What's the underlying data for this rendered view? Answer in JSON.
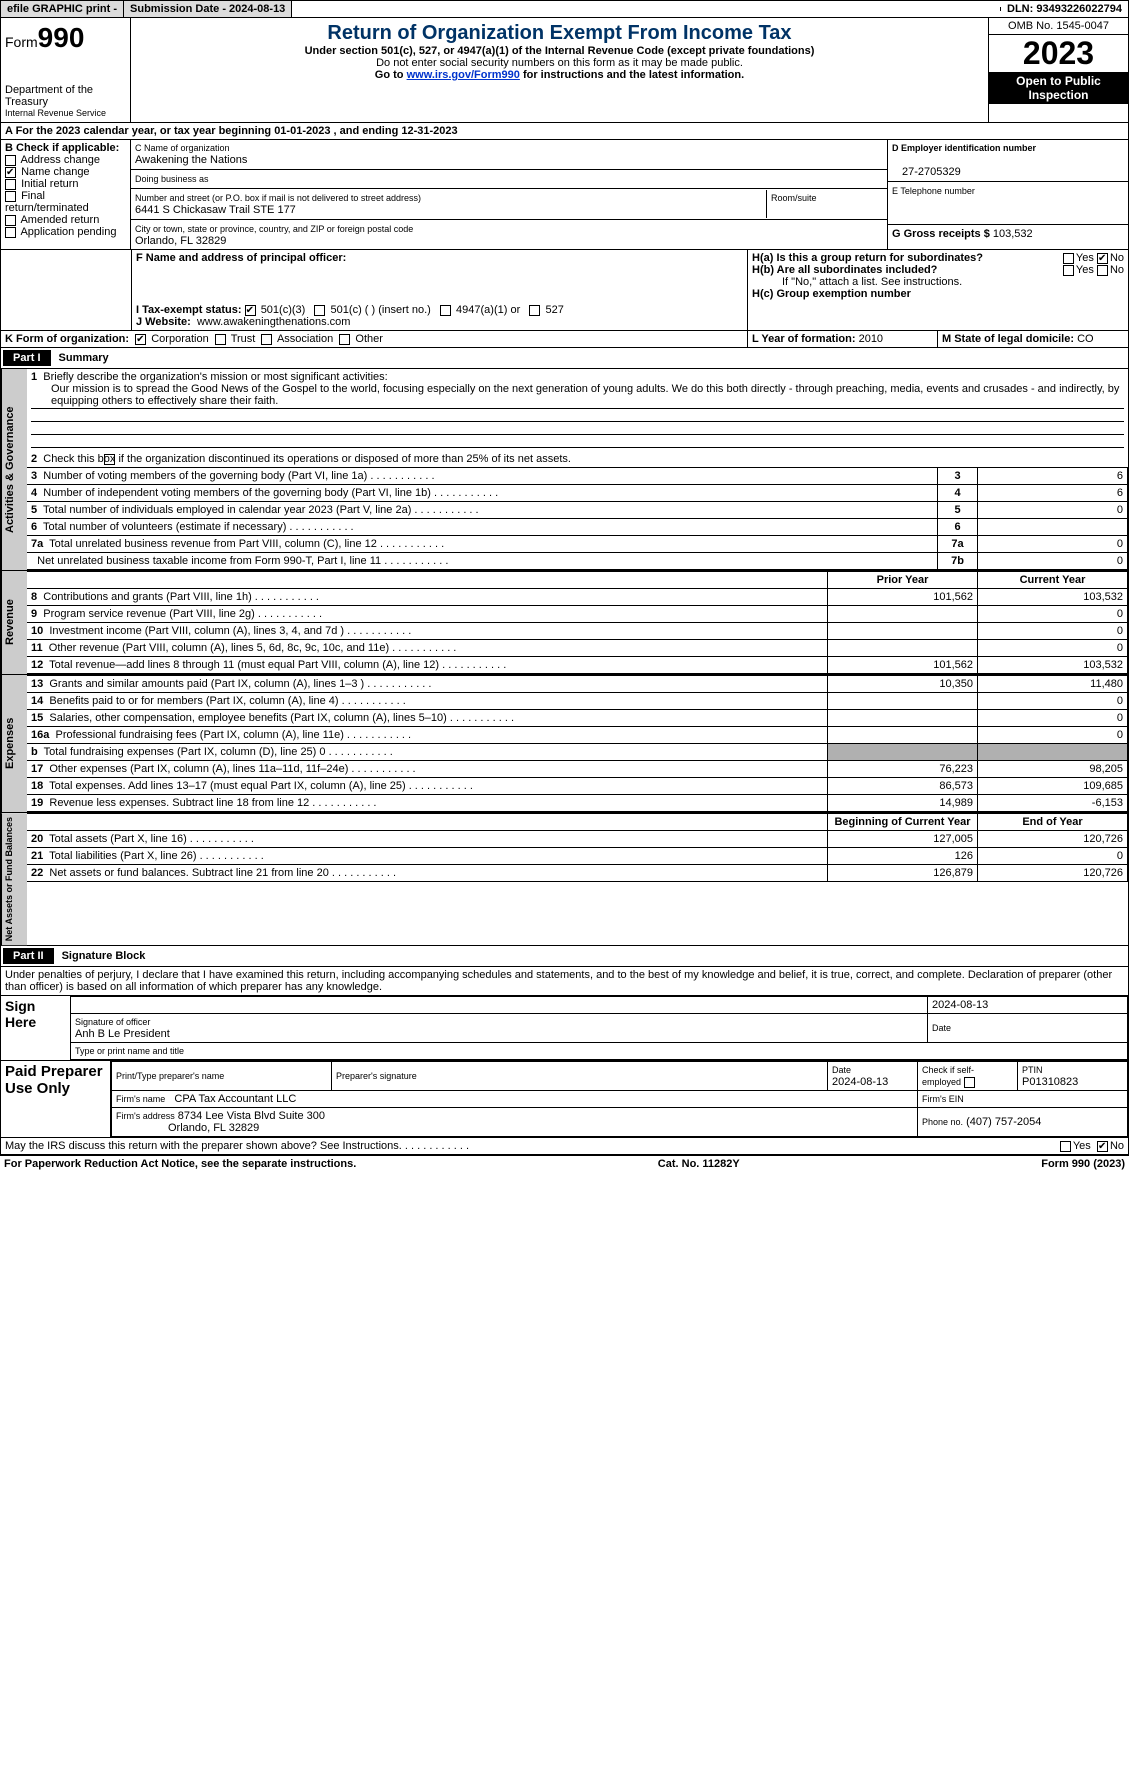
{
  "topbar": {
    "efile": "efile GRAPHIC print -",
    "submission_date_label": "Submission Date - 2024-08-13",
    "dln_label": "DLN: 93493226022794"
  },
  "header": {
    "form_label": "Form",
    "form_number": "990",
    "dept": "Department of the Treasury",
    "irs": "Internal Revenue Service",
    "title": "Return of Organization Exempt From Income Tax",
    "subtitle": "Under section 501(c), 527, or 4947(a)(1) of the Internal Revenue Code (except private foundations)",
    "ssn_note": "Do not enter social security numbers on this form as it may be made public.",
    "goto": "Go to",
    "goto_link": "www.irs.gov/Form990",
    "goto_tail": "for instructions and the latest information.",
    "omb": "OMB No. 1545-0047",
    "year": "2023",
    "inspect": "Open to Public Inspection"
  },
  "sectionA": {
    "text": "A For the 2023 calendar year, or tax year beginning 01-01-2023    , and ending 12-31-2023"
  },
  "boxB": {
    "label": "B Check if applicable:",
    "items": [
      "Address change",
      "Name change",
      "Initial return",
      "Final return/terminated",
      "Amended return",
      "Application pending"
    ],
    "checked_index": 1
  },
  "boxC": {
    "name_label": "C Name of organization",
    "name": "Awakening the Nations",
    "dba_label": "Doing business as",
    "addr_label": "Number and street (or P.O. box if mail is not delivered to street address)",
    "addr": "6441 S Chickasaw Trail STE 177",
    "room_label": "Room/suite",
    "city_label": "City or town, state or province, country, and ZIP or foreign postal code",
    "city": "Orlando, FL  32829"
  },
  "boxD": {
    "label": "D Employer identification number",
    "value": "27-2705329"
  },
  "boxE": {
    "label": "E Telephone number",
    "value": ""
  },
  "boxG": {
    "label": "G Gross receipts $",
    "value": "103,532"
  },
  "boxF": {
    "label": "F  Name and address of principal officer:"
  },
  "boxH": {
    "ha": "H(a)  Is this a group return for subordinates?",
    "hb": "H(b)  Are all subordinates included?",
    "hb_note": "If \"No,\" attach a list. See instructions.",
    "hc": "H(c)  Group exemption number",
    "yes": "Yes",
    "no": "No"
  },
  "boxI": {
    "label": "I    Tax-exempt status:",
    "opts": [
      "501(c)(3)",
      "501(c) (  ) (insert no.)",
      "4947(a)(1) or",
      "527"
    ]
  },
  "boxJ": {
    "label": "J    Website:",
    "value": "www.awakeningthenations.com"
  },
  "boxK": {
    "label": "K Form of organization:",
    "opts": [
      "Corporation",
      "Trust",
      "Association",
      "Other"
    ]
  },
  "boxL": {
    "label": "L Year of formation:",
    "value": "2010"
  },
  "boxM": {
    "label": "M State of legal domicile:",
    "value": "CO"
  },
  "part1": {
    "tag": "Part I",
    "title": "Summary",
    "line1_label": "Briefly describe the organization's mission or most significant activities:",
    "line1_text": "Our mission is to spread the Good News of the Gospel to the world, focusing especially on the next generation of young adults. We do this both directly - through preaching, media, events and crusades - and indirectly, by equipping others to effectively share their faith.",
    "line2": "Check this box       if the organization discontinued its operations or disposed of more than 25% of its net assets.",
    "vert_ag": "Activities & Governance",
    "vert_rev": "Revenue",
    "vert_exp": "Expenses",
    "vert_na": "Net Assets or Fund Balances",
    "col_prior": "Prior Year",
    "col_current": "Current Year",
    "col_boy": "Beginning of Current Year",
    "col_eoy": "End of Year",
    "rows_ag": [
      {
        "n": "3",
        "t": "Number of voting members of the governing body (Part VI, line 1a)",
        "box": "3",
        "v": "6"
      },
      {
        "n": "4",
        "t": "Number of independent voting members of the governing body (Part VI, line 1b)",
        "box": "4",
        "v": "6"
      },
      {
        "n": "5",
        "t": "Total number of individuals employed in calendar year 2023 (Part V, line 2a)",
        "box": "5",
        "v": "0"
      },
      {
        "n": "6",
        "t": "Total number of volunteers (estimate if necessary)",
        "box": "6",
        "v": ""
      },
      {
        "n": "7a",
        "t": "Total unrelated business revenue from Part VIII, column (C), line 12",
        "box": "7a",
        "v": "0"
      },
      {
        "n": "",
        "t": "Net unrelated business taxable income from Form 990-T, Part I, line 11",
        "box": "7b",
        "v": "0"
      }
    ],
    "rows_rev": [
      {
        "n": "8",
        "t": "Contributions and grants (Part VIII, line 1h)",
        "p": "101,562",
        "c": "103,532"
      },
      {
        "n": "9",
        "t": "Program service revenue (Part VIII, line 2g)",
        "p": "",
        "c": "0"
      },
      {
        "n": "10",
        "t": "Investment income (Part VIII, column (A), lines 3, 4, and 7d )",
        "p": "",
        "c": "0"
      },
      {
        "n": "11",
        "t": "Other revenue (Part VIII, column (A), lines 5, 6d, 8c, 9c, 10c, and 11e)",
        "p": "",
        "c": "0"
      },
      {
        "n": "12",
        "t": "Total revenue—add lines 8 through 11 (must equal Part VIII, column (A), line 12)",
        "p": "101,562",
        "c": "103,532"
      }
    ],
    "rows_exp": [
      {
        "n": "13",
        "t": "Grants and similar amounts paid (Part IX, column (A), lines 1–3 )",
        "p": "10,350",
        "c": "11,480"
      },
      {
        "n": "14",
        "t": "Benefits paid to or for members (Part IX, column (A), line 4)",
        "p": "",
        "c": "0"
      },
      {
        "n": "15",
        "t": "Salaries, other compensation, employee benefits (Part IX, column (A), lines 5–10)",
        "p": "",
        "c": "0"
      },
      {
        "n": "16a",
        "t": "Professional fundraising fees (Part IX, column (A), line 11e)",
        "p": "",
        "c": "0"
      },
      {
        "n": "b",
        "t": "Total fundraising expenses (Part IX, column (D), line 25) 0",
        "p": "GRAY",
        "c": "GRAY"
      },
      {
        "n": "17",
        "t": "Other expenses (Part IX, column (A), lines 11a–11d, 11f–24e)",
        "p": "76,223",
        "c": "98,205"
      },
      {
        "n": "18",
        "t": "Total expenses. Add lines 13–17 (must equal Part IX, column (A), line 25)",
        "p": "86,573",
        "c": "109,685"
      },
      {
        "n": "19",
        "t": "Revenue less expenses. Subtract line 18 from line 12",
        "p": "14,989",
        "c": "-6,153"
      }
    ],
    "rows_na": [
      {
        "n": "20",
        "t": "Total assets (Part X, line 16)",
        "p": "127,005",
        "c": "120,726"
      },
      {
        "n": "21",
        "t": "Total liabilities (Part X, line 26)",
        "p": "126",
        "c": "0"
      },
      {
        "n": "22",
        "t": "Net assets or fund balances. Subtract line 21 from line 20",
        "p": "126,879",
        "c": "120,726"
      }
    ]
  },
  "part2": {
    "tag": "Part II",
    "title": "Signature Block",
    "perjury": "Under penalties of perjury, I declare that I have examined this return, including accompanying schedules and statements, and to the best of my knowledge and belief, it is true, correct, and complete. Declaration of preparer (other than officer) is based on all information of which preparer has any knowledge."
  },
  "sign": {
    "here": "Sign Here",
    "sig_off": "Signature of officer",
    "officer": "Anh B Le  President",
    "type_label": "Type or print name and title",
    "date_label": "Date",
    "date": "2024-08-13"
  },
  "paid": {
    "label": "Paid Preparer Use Only",
    "print_label": "Print/Type preparer's name",
    "sig_label": "Preparer's signature",
    "date_label": "Date",
    "date": "2024-08-13",
    "check_label": "Check       if self-employed",
    "ptin_label": "PTIN",
    "ptin": "P01310823",
    "firm_name_label": "Firm's name",
    "firm_name": "CPA Tax Accountant LLC",
    "firm_ein_label": "Firm's EIN",
    "firm_addr_label": "Firm's address",
    "firm_addr1": "8734 Lee Vista Blvd Suite 300",
    "firm_addr2": "Orlando, FL  32829",
    "phone_label": "Phone no.",
    "phone": "(407) 757-2054"
  },
  "discuss": {
    "text": "May the IRS discuss this return with the preparer shown above? See Instructions.",
    "yes": "Yes",
    "no": "No"
  },
  "footer": {
    "left": "For Paperwork Reduction Act Notice, see the separate instructions.",
    "mid": "Cat. No. 11282Y",
    "right": "Form 990 (2023)"
  }
}
